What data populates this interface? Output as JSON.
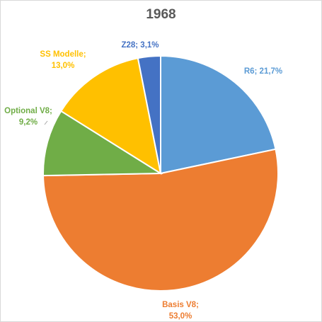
{
  "chart_data": {
    "type": "pie",
    "title": "1968",
    "slices": [
      {
        "label": "R6",
        "value": 21.7,
        "value_text": "21,7%",
        "color": "#5b9bd5"
      },
      {
        "label": "Basis V8",
        "value": 53.0,
        "value_text": "53,0%",
        "color": "#ed7d31"
      },
      {
        "label": "Optional V8",
        "value": 9.2,
        "value_text": "9,2%",
        "color": "#70ad47"
      },
      {
        "label": "SS Modelle",
        "value": 13.0,
        "value_text": "13,0%",
        "color": "#ffc000"
      },
      {
        "label": "Z28",
        "value": 3.1,
        "value_text": "3,1%",
        "color": "#4472c4"
      }
    ],
    "legend": "none"
  }
}
